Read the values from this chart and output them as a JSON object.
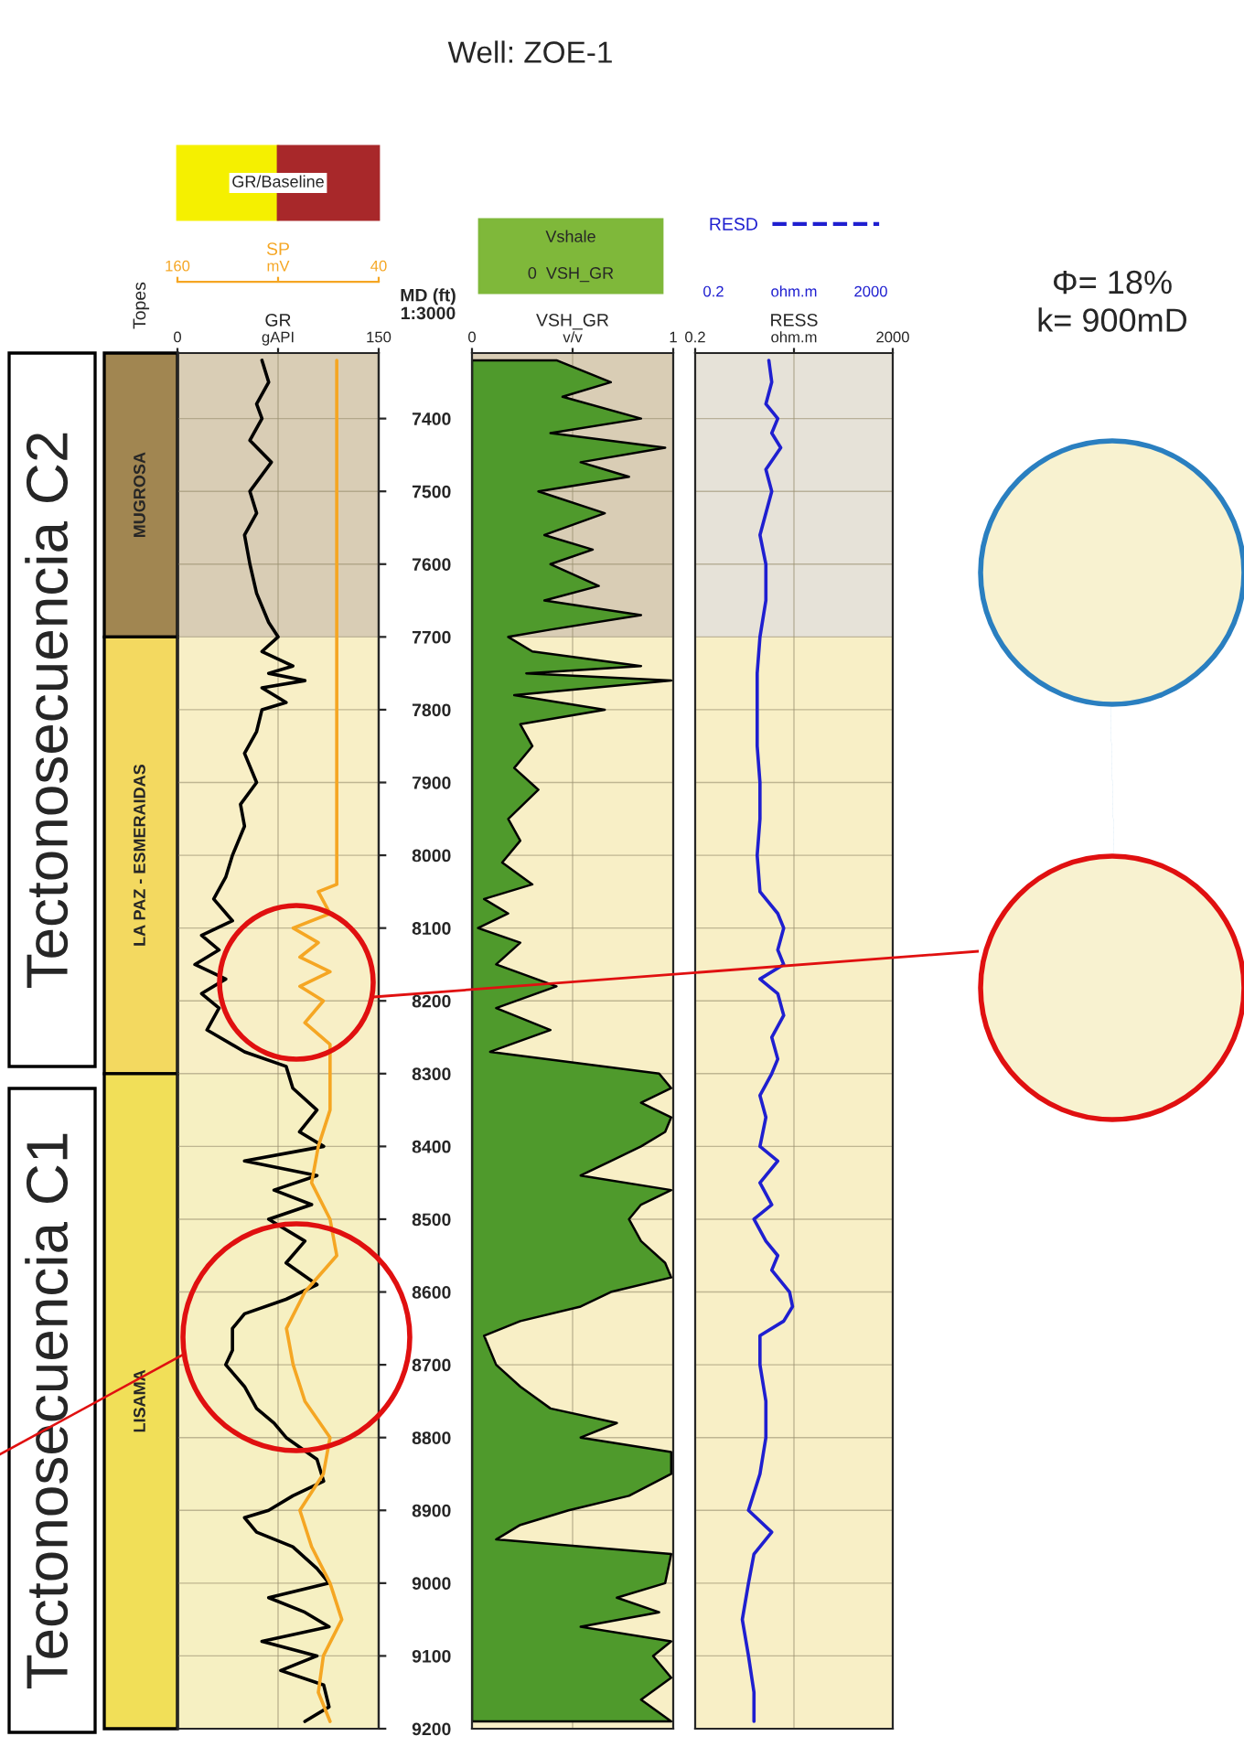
{
  "chart_data": [
    {
      "type": "line",
      "orientation": "horizontal",
      "xlabel": "GR",
      "x2label": "SP",
      "ylabel": "MD (ft)",
      "annotations": [
        "GR/Baseline",
        "Topes",
        "1:3000",
        "Tectonosecuencia C2",
        "Tectonosecuencia C1"
      ],
      "xlim": [
        0,
        150
      ],
      "xticks": [
        0,
        {
          "value": 75,
          "label": "gAPI"
        },
        150
      ],
      "x2lim": [
        160,
        40
      ],
      "x2ticks": [
        160,
        {
          "value": 100,
          "label": "mV"
        },
        40
      ],
      "ylim": [
        9200,
        7310
      ],
      "yticks": [
        7400,
        7500,
        7600,
        7700,
        7800,
        7900,
        8000,
        8100,
        8200,
        8300,
        8400,
        8500,
        8600,
        8700,
        8800,
        8900,
        9000,
        9100,
        9200
      ],
      "grid": true,
      "bands": [
        {
          "axis": "y",
          "from": 7310,
          "to": 7700,
          "label": "MUGROSA",
          "color": "#d9cdb5"
        },
        {
          "axis": "y",
          "from": 7700,
          "to": 8300,
          "label": "LA PAZ - ESMERAIDAS",
          "color": "#f8efc6"
        },
        {
          "axis": "y",
          "from": 8300,
          "to": 9200,
          "label": "LISAMA",
          "color": "#f6f0c2"
        }
      ],
      "series": [
        {
          "color": "#000000",
          "x": [
            7320,
            7350,
            7380,
            7400,
            7430,
            7460,
            7500,
            7530,
            7560,
            7600,
            7640,
            7680,
            7700,
            7720,
            7740,
            7750,
            7760,
            7770,
            7790,
            7800,
            7830,
            7860,
            7900,
            7930,
            7960,
            8000,
            8030,
            8060,
            8090,
            8110,
            8130,
            8150,
            8170,
            8190,
            8210,
            8240,
            8270,
            8290,
            8320,
            8350,
            8380,
            8400,
            8420,
            8440,
            8460,
            8480,
            8500,
            8530,
            8560,
            8590,
            8610,
            8630,
            8650,
            8680,
            8700,
            8730,
            8760,
            8780,
            8800,
            8830,
            8860,
            8880,
            8900,
            8910,
            8930,
            8950,
            8980,
            9000,
            9020,
            9040,
            9060,
            9080,
            9100,
            9120,
            9140,
            9170,
            9190
          ],
          "values": [
            63,
            68,
            59,
            63,
            54,
            70,
            54,
            59,
            50,
            54,
            59,
            68,
            75,
            63,
            86,
            68,
            95,
            63,
            81,
            63,
            59,
            50,
            59,
            47,
            50,
            41,
            36,
            27,
            41,
            18,
            31,
            13,
            36,
            18,
            31,
            22,
            50,
            81,
            86,
            104,
            91,
            109,
            50,
            104,
            72,
            100,
            68,
            95,
            81,
            104,
            81,
            50,
            41,
            41,
            36,
            50,
            59,
            72,
            81,
            104,
            109,
            86,
            68,
            50,
            59,
            86,
            104,
            113,
            68,
            95,
            113,
            63,
            104,
            77,
            109,
            113,
            95
          ]
        },
        {
          "color": "#f5a623",
          "axis": "x2",
          "x": [
            7320,
            7500,
            7700,
            7900,
            8040,
            8050,
            8080,
            8100,
            8120,
            8140,
            8160,
            8180,
            8200,
            8230,
            8260,
            8300,
            8350,
            8400,
            8450,
            8500,
            8550,
            8600,
            8650,
            8700,
            8750,
            8800,
            8850,
            8900,
            8950,
            9000,
            9050,
            9100,
            9150,
            9190
          ],
          "values": [
            65,
            65,
            65,
            65,
            65,
            76,
            69,
            91,
            76,
            87,
            69,
            87,
            73,
            84,
            69,
            69,
            69,
            76,
            80,
            69,
            65,
            84,
            95,
            91,
            84,
            69,
            73,
            87,
            80,
            69,
            62,
            73,
            76,
            69
          ]
        }
      ]
    },
    {
      "type": "area",
      "title": "Well: ZOE-1",
      "orientation": "horizontal",
      "xlabel": "VSH_GR",
      "annotations": [
        "Vshale",
        "0  VSH_GR"
      ],
      "xlim": [
        0,
        1
      ],
      "xticks": [
        0,
        {
          "value": 0.5,
          "label": "v/v"
        },
        1
      ],
      "ylim": [
        9200,
        7310
      ],
      "yticks": [
        7400,
        7500,
        7600,
        7700,
        7800,
        7900,
        8000,
        8100,
        8200,
        8300,
        8400,
        8500,
        8600,
        8700,
        8800,
        8900,
        9000,
        9100,
        9200
      ],
      "tick_labels": "x",
      "grid": true,
      "bands": [
        {
          "axis": "y",
          "from": 7310,
          "to": 7700,
          "color": "#d9cdb5"
        },
        {
          "axis": "y",
          "from": 7700,
          "to": 9200,
          "color": "#f8efc6"
        }
      ],
      "series": [
        {
          "color": "#4f9a2c",
          "x": [
            7320,
            7350,
            7370,
            7400,
            7420,
            7440,
            7460,
            7480,
            7500,
            7530,
            7560,
            7580,
            7600,
            7630,
            7650,
            7670,
            7690,
            7700,
            7720,
            7740,
            7750,
            7760,
            7780,
            7800,
            7820,
            7850,
            7880,
            7910,
            7950,
            7980,
            8010,
            8040,
            8060,
            8080,
            8100,
            8120,
            8150,
            8180,
            8210,
            8240,
            8270,
            8300,
            8320,
            8340,
            8360,
            8380,
            8400,
            8420,
            8440,
            8460,
            8480,
            8500,
            8530,
            8560,
            8580,
            8600,
            8620,
            8640,
            8660,
            8700,
            8730,
            8760,
            8780,
            8800,
            8820,
            8850,
            8880,
            8900,
            8920,
            8940,
            8960,
            9000,
            9020,
            9040,
            9060,
            9080,
            9100,
            9130,
            9160,
            9190
          ],
          "values": [
            0.42,
            0.69,
            0.45,
            0.84,
            0.39,
            0.96,
            0.54,
            0.78,
            0.33,
            0.66,
            0.36,
            0.6,
            0.39,
            0.63,
            0.36,
            0.84,
            0.39,
            0.18,
            0.3,
            0.84,
            0.27,
            0.99,
            0.21,
            0.66,
            0.24,
            0.3,
            0.21,
            0.33,
            0.18,
            0.24,
            0.15,
            0.3,
            0.06,
            0.18,
            0.03,
            0.24,
            0.12,
            0.42,
            0.12,
            0.39,
            0.09,
            0.93,
            0.99,
            0.84,
            0.99,
            0.96,
            0.84,
            0.69,
            0.54,
            0.99,
            0.84,
            0.78,
            0.84,
            0.96,
            0.99,
            0.69,
            0.54,
            0.24,
            0.06,
            0.12,
            0.24,
            0.39,
            0.72,
            0.54,
            0.99,
            0.99,
            0.78,
            0.48,
            0.24,
            0.12,
            0.99,
            0.96,
            0.72,
            0.93,
            0.54,
            0.99,
            0.9,
            0.99,
            0.84,
            0.99
          ]
        }
      ]
    },
    {
      "type": "line",
      "orientation": "horizontal",
      "xlabel": "RESS",
      "log": "x",
      "legend": "top",
      "annotations": [
        "Φ= 18%\nk= 900mD",
        "0.2",
        "ohm.m",
        "2000"
      ],
      "xlim": [
        0.2,
        2000
      ],
      "xticks": [
        0.2,
        {
          "value": 20,
          "label": "ohm.m"
        },
        2000
      ],
      "ylim": [
        9200,
        7310
      ],
      "yticks": [
        7400,
        7500,
        7600,
        7700,
        7800,
        7900,
        8000,
        8100,
        8200,
        8300,
        8400,
        8500,
        8600,
        8700,
        8800,
        8900,
        9000,
        9100,
        9200
      ],
      "tick_labels": "x",
      "grid": true,
      "bands": [
        {
          "axis": "y",
          "from": 7310,
          "to": 7700,
          "color": "#e6e2d8"
        },
        {
          "axis": "y",
          "from": 7700,
          "to": 9200,
          "color": "#f8efc6"
        }
      ],
      "series": [
        {
          "name": "RESD",
          "color": "#1f1fd0",
          "x": [
            7320,
            7350,
            7380,
            7400,
            7420,
            7440,
            7470,
            7500,
            7530,
            7560,
            7600,
            7650,
            7700,
            7750,
            7800,
            7850,
            7900,
            7950,
            8000,
            8050,
            8080,
            8100,
            8130,
            8150,
            8170,
            8190,
            8220,
            8250,
            8280,
            8300,
            8330,
            8360,
            8400,
            8420,
            8450,
            8480,
            8500,
            8530,
            8550,
            8570,
            8600,
            8620,
            8640,
            8660,
            8700,
            8750,
            8800,
            8850,
            8900,
            8930,
            8960,
            9000,
            9050,
            9100,
            9150,
            9190
          ],
          "values": [
            6.2,
            7.1,
            5.4,
            9.4,
            7.1,
            10.8,
            5.4,
            7.1,
            5.4,
            4.1,
            5.4,
            5.4,
            4.1,
            3.6,
            3.6,
            3.6,
            4.1,
            4.1,
            3.6,
            4.1,
            9.4,
            12.4,
            9.4,
            12.4,
            4.1,
            9.4,
            12.4,
            7.1,
            9.4,
            7.1,
            4.1,
            5.4,
            4.1,
            9.4,
            4.1,
            7.1,
            3.1,
            5.4,
            9.4,
            7.1,
            16.3,
            18.7,
            12.4,
            4.1,
            4.1,
            5.4,
            5.4,
            4.1,
            2.4,
            7.1,
            3.1,
            2.4,
            1.8,
            2.4,
            3.1,
            3.1
          ]
        }
      ]
    }
  ]
}
